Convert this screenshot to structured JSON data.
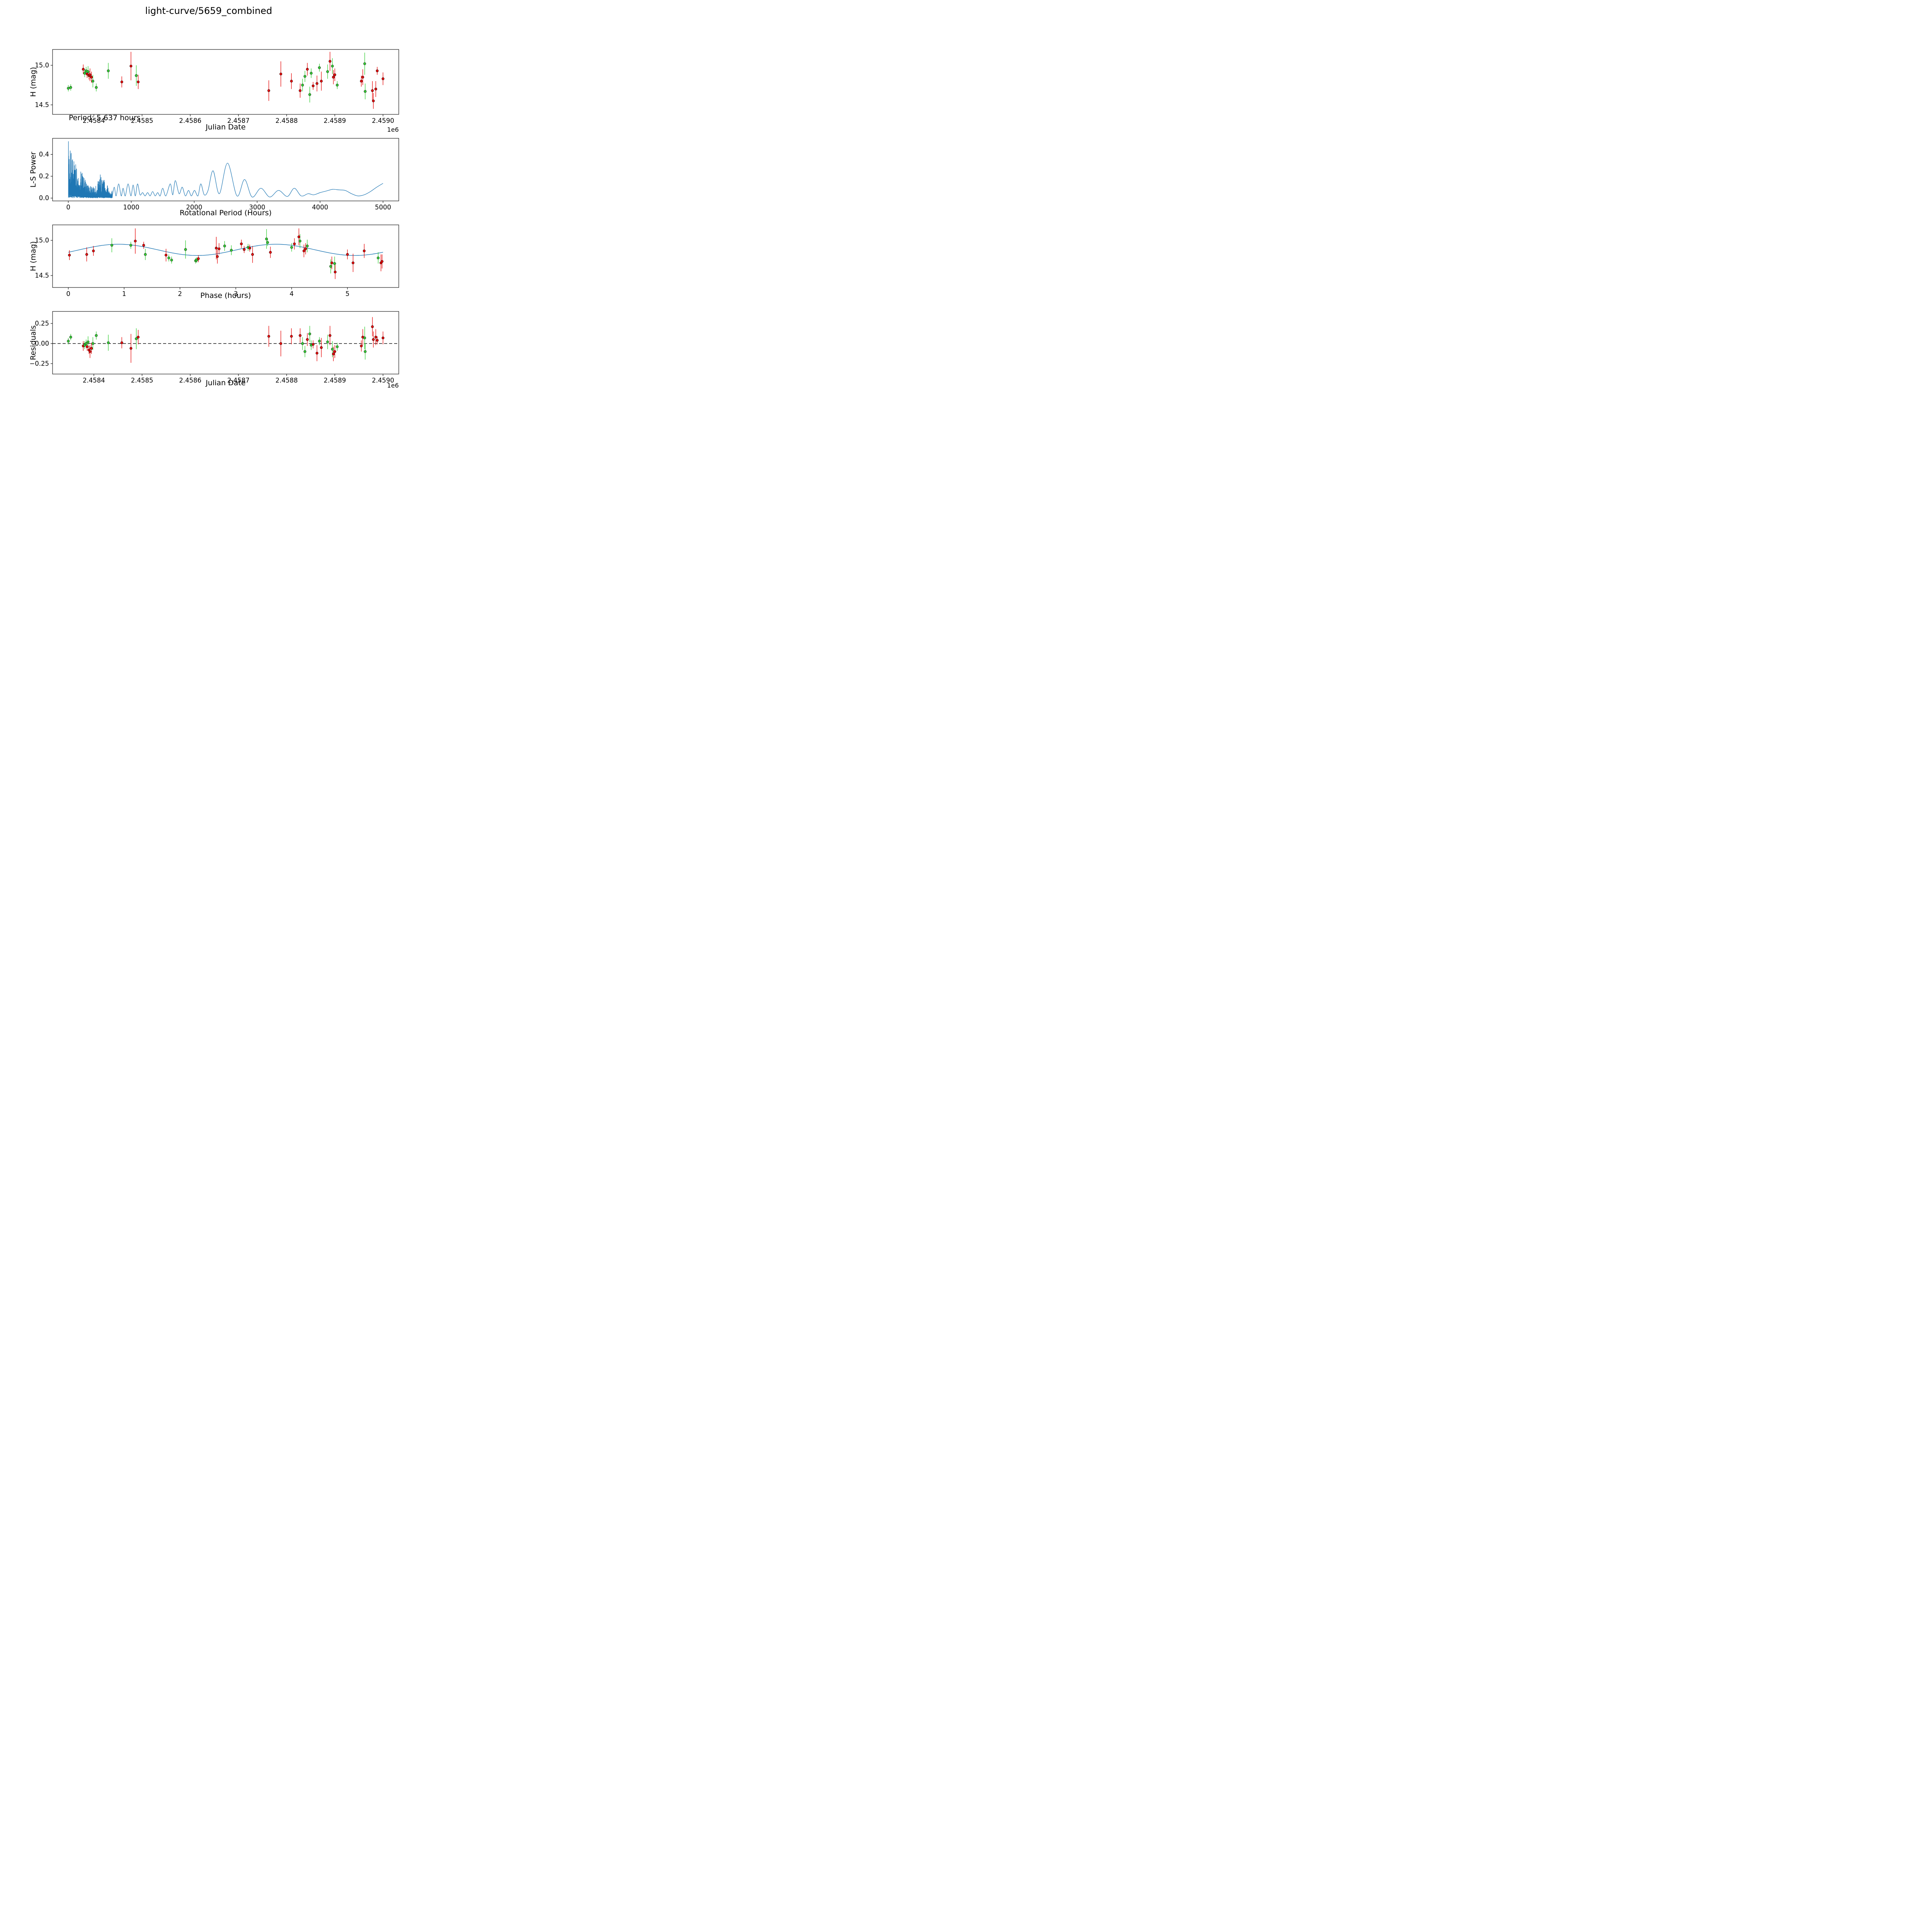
{
  "title": "light-curve/5659_combined",
  "annotation": "Period: 5.637 hours",
  "axes": {
    "p1": {
      "xlabel": "Julian Date",
      "ylabel": "H (mag)",
      "offset": "1e6"
    },
    "p2": {
      "xlabel": "Rotational Period (Hours)",
      "ylabel": "L-S Power"
    },
    "p3": {
      "xlabel": "Phase (hours)",
      "ylabel": "H (mag)"
    },
    "p4": {
      "xlabel": "Julian Date",
      "ylabel": "Residuals",
      "offset": "1e6"
    }
  },
  "colors": {
    "red": "#e60000",
    "green": "#32cd32",
    "line": "#1f77b4",
    "axis": "#000000"
  },
  "chart_data": {
    "type": "multi-panel",
    "panels": [
      {
        "id": "lightcurve",
        "type": "scatter",
        "xlabel": "Julian Date",
        "ylabel": "H (mag)",
        "x_units": "1e6 JD",
        "xlim": [
          2.4583143,
          2.4590327
        ],
        "ylim": [
          14.38,
          15.2
        ],
        "xticks": [
          2.4584,
          2.4585,
          2.4586,
          2.4587,
          2.4588,
          2.4589,
          2.459
        ],
        "xtick_labels": [
          "2.4584",
          "2.4585",
          "2.4586",
          "2.4587",
          "2.4588",
          "2.4589",
          "2.4590"
        ],
        "yticks": [
          14.5,
          15.0
        ],
        "ytick_labels": [
          "14.5",
          "15.0"
        ],
        "annotation": "Period: 5.637 hours"
      },
      {
        "id": "periodogram",
        "type": "line",
        "xlabel": "Rotational Period (Hours)",
        "ylabel": "L-S Power",
        "xlim": [
          -250,
          5250
        ],
        "ylim": [
          -0.026,
          0.547
        ],
        "xticks": [
          0,
          1000,
          2000,
          3000,
          4000,
          5000
        ],
        "xtick_labels": [
          "0",
          "1000",
          "2000",
          "3000",
          "4000",
          "5000"
        ],
        "yticks": [
          0.0,
          0.2,
          0.4
        ],
        "ytick_labels": [
          "0.0",
          "0.2",
          "0.4"
        ],
        "peak_period_hours": 2530,
        "peak_power": 0.32,
        "max_power_at_low_period": 0.52
      },
      {
        "id": "phase",
        "type": "scatter+fit",
        "xlabel": "Phase (hours)",
        "ylabel": "H (mag)",
        "xlim": [
          -0.282,
          5.919
        ],
        "ylim": [
          14.33,
          15.22
        ],
        "xticks": [
          0,
          1,
          2,
          3,
          4,
          5
        ],
        "xtick_labels": [
          "0",
          "1",
          "2",
          "3",
          "4",
          "5"
        ],
        "yticks": [
          14.5,
          15.0
        ],
        "ytick_labels": [
          "14.5",
          "15.0"
        ]
      },
      {
        "id": "residuals",
        "type": "scatter",
        "xlabel": "Julian Date",
        "ylabel": "Residuals",
        "xlim": [
          2.4583143,
          2.4590327
        ],
        "ylim": [
          -0.38,
          0.4
        ],
        "xticks": [
          2.4584,
          2.4585,
          2.4586,
          2.4587,
          2.4588,
          2.4589,
          2.459
        ],
        "xtick_labels": [
          "2.4584",
          "2.4585",
          "2.4586",
          "2.4587",
          "2.4588",
          "2.4589",
          "2.4590"
        ],
        "yticks": [
          -0.25,
          0,
          0.25
        ],
        "ytick_labels": [
          "−0.25",
          "0.00",
          "0.25"
        ],
        "hline": 0
      }
    ],
    "fit": {
      "period_hours": 5.637,
      "mean_mag": 14.865,
      "amplitude_mag": 0.08,
      "peak_phase_hours": 0.9
    },
    "observations_fields": [
      "jd_1e6",
      "phase_hours",
      "h_mag",
      "h_err",
      "series",
      "residual"
    ],
    "observations": [
      [
        2.458347,
        2.28,
        14.71,
        0.04,
        "g",
        0.03
      ],
      [
        2.458352,
        2.3,
        14.72,
        0.04,
        "g",
        0.08
      ],
      [
        2.458378,
        3.1,
        14.95,
        0.06,
        "r",
        -0.03
      ],
      [
        2.458381,
        3.22,
        14.9,
        0.05,
        "g",
        -0.02
      ],
      [
        2.458384,
        1.12,
        14.93,
        0.05,
        "g",
        0.0
      ],
      [
        2.458386,
        3.25,
        14.89,
        0.05,
        "r",
        -0.04
      ],
      [
        2.458388,
        2.8,
        14.92,
        0.07,
        "g",
        0.02
      ],
      [
        2.45839,
        3.15,
        14.87,
        0.05,
        "r",
        -0.08
      ],
      [
        2.458392,
        2.7,
        14.88,
        0.08,
        "r",
        -0.1
      ],
      [
        2.458395,
        0.45,
        14.85,
        0.07,
        "r",
        -0.06
      ],
      [
        2.458398,
        1.38,
        14.8,
        0.08,
        "g",
        0.0
      ],
      [
        2.458405,
        1.85,
        14.72,
        0.05,
        "g",
        0.1
      ],
      [
        2.45843,
        0.78,
        14.93,
        0.1,
        "g",
        0.01
      ],
      [
        2.458458,
        0.02,
        14.79,
        0.07,
        "r",
        0.01
      ],
      [
        2.458477,
        1.2,
        14.99,
        0.18,
        "r",
        -0.06
      ],
      [
        2.458488,
        2.1,
        14.87,
        0.13,
        "g",
        0.06
      ],
      [
        2.458492,
        1.75,
        14.79,
        0.09,
        "r",
        0.08
      ],
      [
        2.458763,
        5.1,
        14.68,
        0.13,
        "r",
        0.09
      ],
      [
        2.458788,
        2.65,
        14.89,
        0.16,
        "r",
        0.0
      ],
      [
        2.45881,
        0.33,
        14.8,
        0.1,
        "r",
        0.09
      ],
      [
        2.458828,
        4.72,
        14.68,
        0.09,
        "r",
        0.1
      ],
      [
        2.458833,
        5.55,
        14.75,
        0.08,
        "g",
        0.0
      ],
      [
        2.458838,
        2.92,
        14.86,
        0.07,
        "g",
        -0.1
      ],
      [
        2.458843,
        4.05,
        14.95,
        0.08,
        "r",
        0.05
      ],
      [
        2.458848,
        4.7,
        14.63,
        0.1,
        "g",
        0.12
      ],
      [
        2.458851,
        4.0,
        14.9,
        0.06,
        "g",
        -0.02
      ],
      [
        2.458855,
        2.33,
        14.74,
        0.05,
        "r",
        -0.01
      ],
      [
        2.458863,
        2.67,
        14.77,
        0.1,
        "r",
        -0.12
      ],
      [
        2.458868,
        3.57,
        14.97,
        0.05,
        "g",
        0.03
      ],
      [
        2.458872,
        3.3,
        14.8,
        0.12,
        "r",
        -0.05
      ],
      [
        2.458885,
        4.28,
        14.92,
        0.09,
        "g",
        0.02
      ],
      [
        2.45889,
        4.13,
        15.05,
        0.12,
        "r",
        0.1
      ],
      [
        2.458895,
        4.15,
        14.99,
        0.1,
        "g",
        -0.07
      ],
      [
        2.458897,
        4.22,
        14.85,
        0.09,
        "r",
        -0.13
      ],
      [
        2.4589,
        4.25,
        14.88,
        0.08,
        "r",
        -0.1
      ],
      [
        2.458905,
        1.8,
        14.75,
        0.05,
        "g",
        -0.04
      ],
      [
        2.458955,
        5.0,
        14.8,
        0.07,
        "r",
        -0.03
      ],
      [
        2.458958,
        5.3,
        14.85,
        0.1,
        "r",
        0.08
      ],
      [
        2.458962,
        3.55,
        15.02,
        0.14,
        "g",
        0.07
      ],
      [
        2.458963,
        4.77,
        14.67,
        0.1,
        "g",
        -0.1
      ],
      [
        2.458978,
        5.6,
        14.68,
        0.12,
        "r",
        0.21
      ],
      [
        2.45898,
        4.78,
        14.55,
        0.1,
        "r",
        0.05
      ],
      [
        2.458985,
        5.62,
        14.7,
        0.1,
        "r",
        0.08
      ],
      [
        2.458988,
        1.35,
        14.93,
        0.05,
        "r",
        0.04
      ],
      [
        2.459,
        3.62,
        14.83,
        0.08,
        "r",
        0.07
      ]
    ],
    "periodogram_curve": {
      "seed": 20,
      "noise_envelope": [
        [
          3,
          0.52
        ],
        [
          30,
          0.45
        ],
        [
          60,
          0.42
        ],
        [
          100,
          0.36
        ],
        [
          140,
          0.32
        ],
        [
          180,
          0.3
        ],
        [
          220,
          0.24
        ],
        [
          260,
          0.18
        ],
        [
          300,
          0.14
        ],
        [
          340,
          0.11
        ],
        [
          380,
          0.12
        ],
        [
          420,
          0.1
        ],
        [
          460,
          0.14
        ],
        [
          500,
          0.22
        ],
        [
          540,
          0.2
        ],
        [
          580,
          0.16
        ],
        [
          620,
          0.12
        ],
        [
          660,
          0.09
        ],
        [
          700,
          0.07
        ]
      ],
      "smooth_anchors": [
        [
          700,
          0.02
        ],
        [
          730,
          0.1
        ],
        [
          760,
          0.02
        ],
        [
          800,
          0.13
        ],
        [
          840,
          0.02
        ],
        [
          870,
          0.09
        ],
        [
          905,
          0.02
        ],
        [
          950,
          0.13
        ],
        [
          995,
          0.02
        ],
        [
          1030,
          0.12
        ],
        [
          1065,
          0.02
        ],
        [
          1100,
          0.13
        ],
        [
          1140,
          0.03
        ],
        [
          1180,
          0.05
        ],
        [
          1220,
          0.02
        ],
        [
          1260,
          0.05
        ],
        [
          1300,
          0.02
        ],
        [
          1340,
          0.06
        ],
        [
          1380,
          0.02
        ],
        [
          1420,
          0.05
        ],
        [
          1460,
          0.02
        ],
        [
          1500,
          0.09
        ],
        [
          1550,
          0.02
        ],
        [
          1620,
          0.13
        ],
        [
          1660,
          0.03
        ],
        [
          1700,
          0.16
        ],
        [
          1760,
          0.04
        ],
        [
          1810,
          0.1
        ],
        [
          1860,
          0.02
        ],
        [
          1910,
          0.07
        ],
        [
          1955,
          0.02
        ],
        [
          2005,
          0.07
        ],
        [
          2060,
          0.02
        ],
        [
          2105,
          0.13
        ],
        [
          2160,
          0.03
        ],
        [
          2220,
          0.07
        ],
        [
          2300,
          0.25
        ],
        [
          2400,
          0.04
        ],
        [
          2530,
          0.32
        ],
        [
          2680,
          0.02
        ],
        [
          2800,
          0.17
        ],
        [
          2920,
          0.01
        ],
        [
          3060,
          0.09
        ],
        [
          3200,
          0.01
        ],
        [
          3340,
          0.07
        ],
        [
          3480,
          0.015
        ],
        [
          3590,
          0.09
        ],
        [
          3700,
          0.02
        ],
        [
          3810,
          0.04
        ],
        [
          3900,
          0.03
        ],
        [
          4000,
          0.05
        ],
        [
          4100,
          0.065
        ],
        [
          4200,
          0.08
        ],
        [
          4300,
          0.075
        ],
        [
          4400,
          0.07
        ],
        [
          4500,
          0.04
        ],
        [
          4600,
          0.02
        ],
        [
          4700,
          0.03
        ],
        [
          4800,
          0.06
        ],
        [
          4900,
          0.1
        ],
        [
          5000,
          0.135
        ]
      ]
    }
  }
}
